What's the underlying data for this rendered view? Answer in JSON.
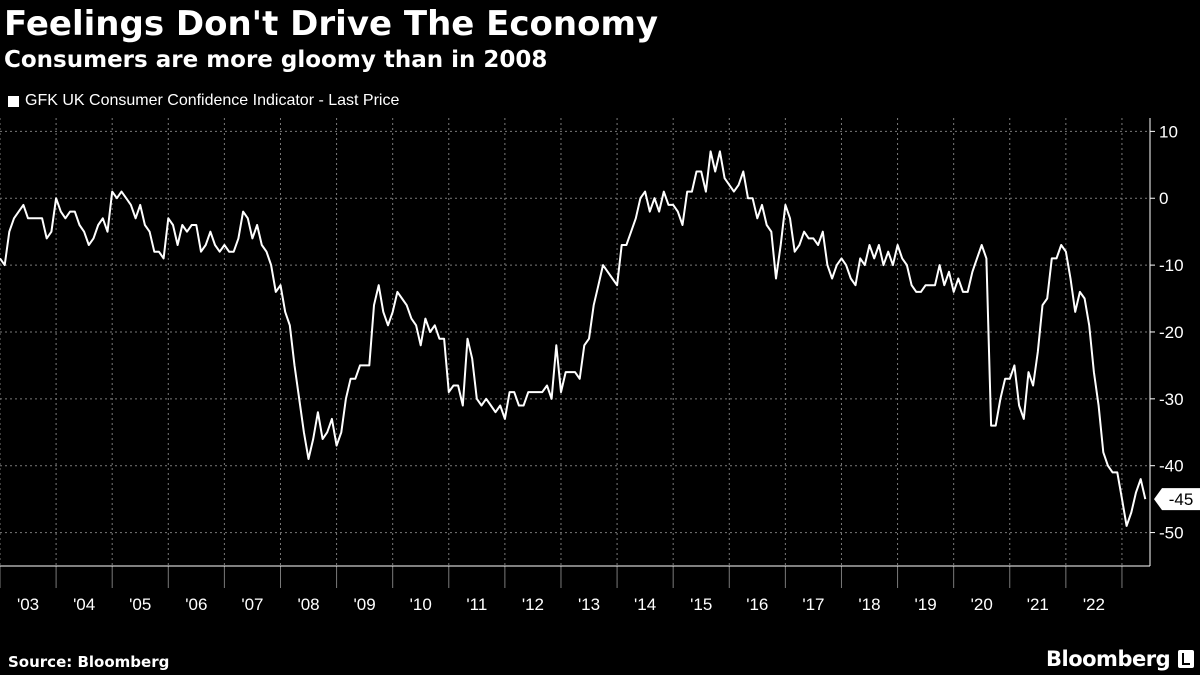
{
  "header": {
    "title": "Feelings Don't Drive The Economy",
    "subtitle": "Consumers are more gloomy than in 2008"
  },
  "footer": {
    "source": "Source: Bloomberg",
    "brand": "Bloomberg"
  },
  "colors": {
    "background": "#000000",
    "line": "#ffffff",
    "grid": "#7a7a7a"
  },
  "chart_data": {
    "type": "line",
    "title": "Feelings Don't Drive The Economy",
    "subtitle": "Consumers are more gloomy than in 2008",
    "xlabel": "",
    "ylabel": "",
    "ylim": [
      -55,
      12
    ],
    "xlim": [
      2003.0,
      2023.5
    ],
    "y_ticks": [
      10,
      0,
      -10,
      -20,
      -30,
      -40,
      -50
    ],
    "y_tick_labels": [
      "10",
      "0",
      "-10",
      "-20",
      "-30",
      "-40",
      "-50"
    ],
    "x_tick_labels": [
      "'03",
      "'04",
      "'05",
      "'06",
      "'07",
      "'08",
      "'09",
      "'10",
      "'11",
      "'12",
      "'13",
      "'14",
      "'15",
      "'16",
      "'17",
      "'18",
      "'19",
      "'20",
      "'21",
      "'22"
    ],
    "x_tick_years": [
      2003,
      2004,
      2005,
      2006,
      2007,
      2008,
      2009,
      2010,
      2011,
      2012,
      2013,
      2014,
      2015,
      2016,
      2017,
      2018,
      2019,
      2020,
      2021,
      2022
    ],
    "grid": true,
    "last_value_label": "-45",
    "series": [
      {
        "name": "GFK UK Consumer Confidence Indicator - Last Price",
        "start_year": 2003.0,
        "points_per_year": 12,
        "values": [
          -9,
          -10,
          -5,
          -3,
          -2,
          -1,
          -3,
          -3,
          -3,
          -3,
          -6,
          -5,
          0,
          -2,
          -3,
          -2,
          -2,
          -4,
          -5,
          -7,
          -6,
          -4,
          -3,
          -5,
          1,
          0,
          1,
          0,
          -1,
          -3,
          -1,
          -4,
          -5,
          -8,
          -8,
          -9,
          -3,
          -4,
          -7,
          -4,
          -5,
          -4,
          -4,
          -8,
          -7,
          -5,
          -7,
          -8,
          -7,
          -8,
          -8,
          -6,
          -2,
          -3,
          -6,
          -4,
          -7,
          -8,
          -10,
          -14,
          -13,
          -17,
          -19,
          -25,
          -30,
          -35,
          -39,
          -36,
          -32,
          -36,
          -35,
          -33,
          -37,
          -35,
          -30,
          -27,
          -27,
          -25,
          -25,
          -25,
          -16,
          -13,
          -17,
          -19,
          -17,
          -14,
          -15,
          -16,
          -18,
          -19,
          -22,
          -18,
          -20,
          -19,
          -21,
          -21,
          -29,
          -28,
          -28,
          -31,
          -21,
          -24,
          -30,
          -31,
          -30,
          -31,
          -32,
          -31,
          -33,
          -29,
          -29,
          -31,
          -31,
          -29,
          -29,
          -29,
          -29,
          -28,
          -30,
          -22,
          -29,
          -26,
          -26,
          -26,
          -27,
          -22,
          -21,
          -16,
          -13,
          -10,
          -11,
          -12,
          -13,
          -7,
          -7,
          -5,
          -3,
          0,
          1,
          -2,
          0,
          -2,
          1,
          -1,
          -1,
          -2,
          -4,
          1,
          1,
          4,
          4,
          1,
          7,
          4,
          7,
          3,
          2,
          1,
          2,
          4,
          0,
          0,
          -3,
          -1,
          -4,
          -5,
          -12,
          -7,
          -1,
          -3,
          -8,
          -7,
          -5,
          -6,
          -6,
          -7,
          -5,
          -10,
          -12,
          -10,
          -9,
          -10,
          -12,
          -13,
          -9,
          -10,
          -7,
          -9,
          -7,
          -10,
          -8,
          -10,
          -7,
          -9,
          -10,
          -13,
          -14,
          -14,
          -13,
          -13,
          -13,
          -10,
          -13,
          -11,
          -14,
          -12,
          -14,
          -14,
          -11,
          -9,
          -7,
          -9,
          -34,
          -34,
          -30,
          -27,
          -27,
          -25,
          -31,
          -33,
          -26,
          -28,
          -23,
          -16,
          -15,
          -9,
          -9,
          -7,
          -8,
          -12,
          -17,
          -14,
          -15,
          -19,
          -26,
          -31,
          -38,
          -40,
          -41,
          -41,
          -45,
          -49,
          -47,
          -44,
          -42,
          -45
        ]
      }
    ]
  }
}
